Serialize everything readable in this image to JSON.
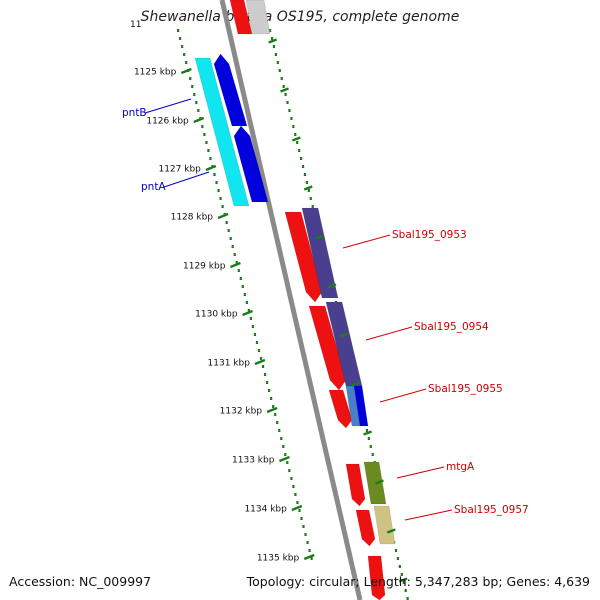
{
  "title": "Shewanella baltica OS195, complete genome",
  "accession": "Accession: NC_009997",
  "summary": "Topology: circular; Length: 5,347,283 bp; Genes: 4,639",
  "colors": {
    "backbone": "#8a8a8a",
    "tick": "#1a7d1a",
    "label_blue": "#0000cc",
    "label_red": "#cc0000"
  },
  "kbp_ticks": [
    "1125 kbp",
    "1126 kbp",
    "1127 kbp",
    "1128 kbp",
    "1129 kbp",
    "1130 kbp",
    "1131 kbp",
    "1132 kbp",
    "1133 kbp",
    "1134 kbp",
    "1135 kbp"
  ],
  "partial_tick_label": "11",
  "gene_labels": [
    {
      "text": "pntB",
      "color": "#0000cc"
    },
    {
      "text": "pntA",
      "color": "#0000cc"
    },
    {
      "text": "Sbal195_0953",
      "color": "#cc0000"
    },
    {
      "text": "Sbal195_0954",
      "color": "#cc0000"
    },
    {
      "text": "Sbal195_0955",
      "color": "#cc0000"
    },
    {
      "text": "mtgA",
      "color": "#cc0000"
    },
    {
      "text": "Sbal195_0957",
      "color": "#cc0000"
    }
  ]
}
